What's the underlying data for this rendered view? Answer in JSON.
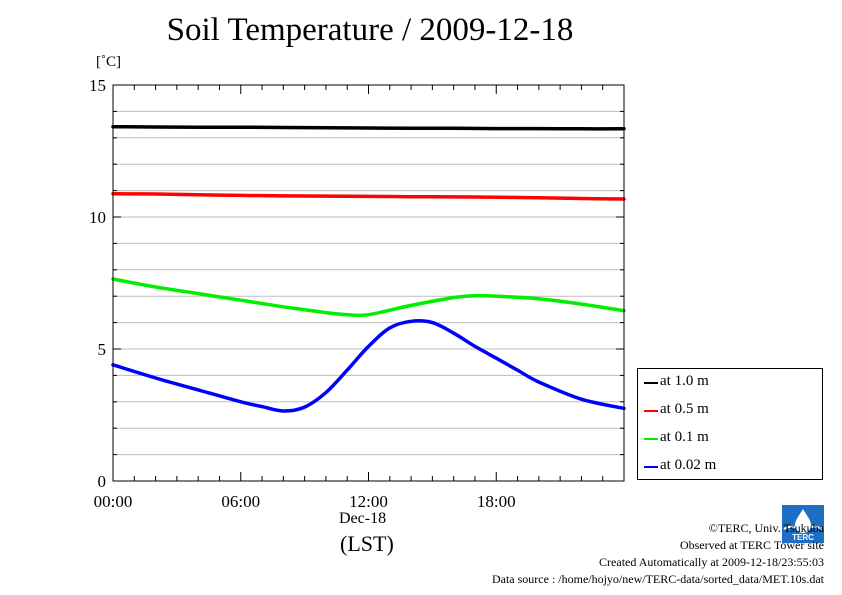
{
  "chart_data": {
    "type": "line",
    "title": "Soil Temperature / 2009-12-18",
    "ylabel": "[˚C]",
    "xlabel": "(LST)",
    "x_date_label": "Dec-18",
    "xlim": [
      0,
      24
    ],
    "ylim": [
      0,
      15
    ],
    "xticks": [
      {
        "value": 0,
        "label": "00:00"
      },
      {
        "value": 6,
        "label": "06:00"
      },
      {
        "value": 12,
        "label": "12:00"
      },
      {
        "value": 18,
        "label": "18:00"
      }
    ],
    "yticks": [
      {
        "value": 0,
        "label": "0"
      },
      {
        "value": 5,
        "label": "5"
      },
      {
        "value": 10,
        "label": "10"
      },
      {
        "value": 15,
        "label": "15"
      }
    ],
    "grid": "horizontal",
    "legend_position": "right",
    "series": [
      {
        "name": "at 1.0 m",
        "color": "#000000",
        "x": [
          0,
          2,
          4,
          6,
          8,
          10,
          12,
          14,
          16,
          18,
          20,
          22,
          24
        ],
        "y": [
          13.42,
          13.41,
          13.4,
          13.4,
          13.39,
          13.38,
          13.37,
          13.36,
          13.36,
          13.35,
          13.35,
          13.34,
          13.34
        ]
      },
      {
        "name": "at 0.5 m",
        "color": "#ff0000",
        "x": [
          0,
          2,
          4,
          6,
          8,
          10,
          12,
          14,
          16,
          18,
          20,
          22,
          24
        ],
        "y": [
          10.88,
          10.87,
          10.84,
          10.82,
          10.8,
          10.79,
          10.78,
          10.77,
          10.76,
          10.75,
          10.73,
          10.7,
          10.68
        ]
      },
      {
        "name": "at 0.1 m",
        "color": "#00ee00",
        "x": [
          0,
          2,
          4,
          6,
          8,
          10,
          11,
          12,
          14,
          16,
          17,
          18,
          20,
          22,
          24
        ],
        "y": [
          7.65,
          7.35,
          7.1,
          6.85,
          6.6,
          6.38,
          6.3,
          6.3,
          6.65,
          6.95,
          7.02,
          7.0,
          6.9,
          6.7,
          6.45
        ]
      },
      {
        "name": "at 0.02 m",
        "color": "#0000ff",
        "x": [
          0,
          2,
          4,
          6,
          7,
          8,
          9,
          10,
          11,
          12,
          13,
          14,
          15,
          16,
          17,
          18,
          19,
          20,
          22,
          24
        ],
        "y": [
          4.4,
          3.9,
          3.45,
          3.0,
          2.82,
          2.65,
          2.8,
          3.35,
          4.2,
          5.1,
          5.8,
          6.05,
          6.0,
          5.6,
          5.1,
          4.65,
          4.2,
          3.75,
          3.1,
          2.75
        ]
      }
    ]
  },
  "credits": {
    "copyright": "©TERC, Univ. Tsukuba",
    "observed": "Observed at TERC Tower site",
    "created": "Created Automatically at 2009-12-18/23:55:03",
    "source": "Data source : /home/hojyo/new/TERC-data/sorted_data/MET.10s.dat",
    "logo_text": "TERC"
  }
}
